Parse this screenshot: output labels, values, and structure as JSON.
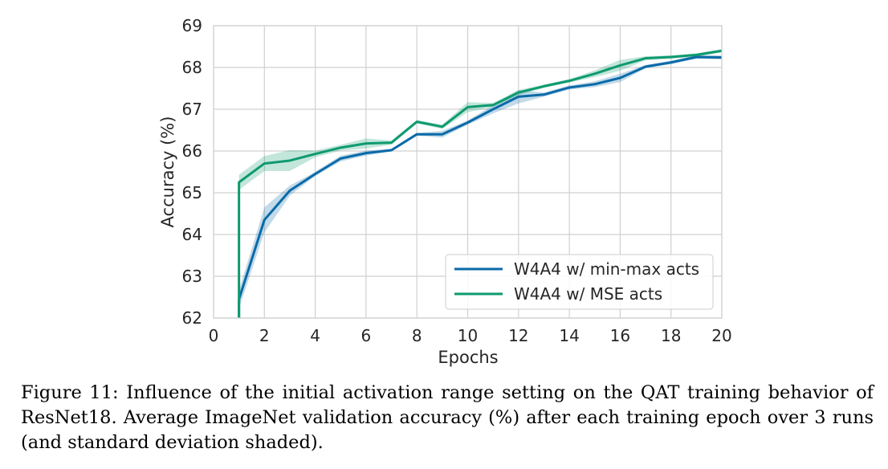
{
  "chart_data": {
    "type": "line",
    "title": "",
    "xlabel": "Epochs",
    "ylabel": "Accuracy (%)",
    "xlim": [
      0,
      20
    ],
    "ylim": [
      62,
      69
    ],
    "xticks": [
      0,
      2,
      4,
      6,
      8,
      10,
      12,
      14,
      16,
      18,
      20
    ],
    "yticks": [
      62,
      63,
      64,
      65,
      66,
      67,
      68,
      69
    ],
    "grid": true,
    "legend_position": "lower-right",
    "x": [
      1,
      2,
      3,
      4,
      5,
      6,
      7,
      8,
      9,
      10,
      11,
      12,
      13,
      14,
      15,
      16,
      17,
      18,
      19,
      20
    ],
    "series": [
      {
        "name": "W4A4 w/ min-max acts",
        "color": "#0a6aa8",
        "values": [
          62.45,
          64.35,
          65.05,
          65.45,
          65.82,
          65.95,
          66.02,
          66.4,
          66.4,
          66.68,
          67.0,
          67.3,
          67.35,
          67.52,
          67.6,
          67.75,
          68.02,
          68.12,
          68.25,
          68.24
        ],
        "std": [
          0.22,
          0.3,
          0.12,
          0.05,
          0.07,
          0.06,
          0.03,
          0.03,
          0.08,
          0.05,
          0.1,
          0.16,
          0.05,
          0.05,
          0.07,
          0.1,
          0.04,
          0.04,
          0.04,
          0.05
        ],
        "start_value": 62.0
      },
      {
        "name": "W4A4 w/ MSE acts",
        "color": "#0e9a6f",
        "values": [
          65.25,
          65.7,
          65.77,
          65.93,
          66.08,
          66.18,
          66.2,
          66.7,
          66.58,
          67.05,
          67.1,
          67.4,
          67.55,
          67.68,
          67.85,
          68.05,
          68.22,
          68.25,
          68.3,
          68.4
        ],
        "std": [
          0.18,
          0.18,
          0.25,
          0.08,
          0.07,
          0.12,
          0.05,
          0.04,
          0.05,
          0.12,
          0.05,
          0.06,
          0.04,
          0.04,
          0.08,
          0.13,
          0.05,
          0.04,
          0.04,
          0.04
        ],
        "start_value": 62.0
      }
    ]
  },
  "caption": "Figure 11: Influence of the initial activation range setting on the QAT training behavior of ResNet18. Average ImageNet validation accuracy (%) after each training epoch over 3 runs (and standard deviation shaded)."
}
